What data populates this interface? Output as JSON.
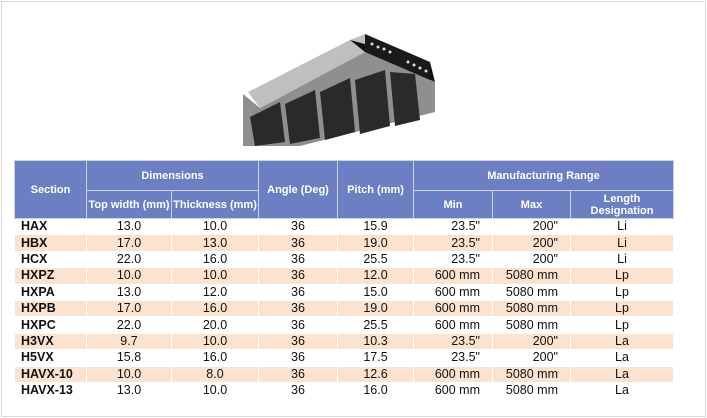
{
  "table": {
    "headers": {
      "section": "Section",
      "dimensions": "Dimensions",
      "top_width": "Top width (mm)",
      "thickness": "Thickness (mm)",
      "angle": "Angle (Deg)",
      "pitch": "Pitch (mm)",
      "manufacturing_range": "Manufacturing Range",
      "min": "Min",
      "max": "Max",
      "length_designation": "Length Designation"
    },
    "rows": [
      [
        "HAX",
        "13.0",
        "10.0",
        "36",
        "15.9",
        "23.5\"",
        "200\"",
        "Li"
      ],
      [
        "HBX",
        "17.0",
        "13.0",
        "36",
        "19.0",
        "23.5\"",
        "200\"",
        "Li"
      ],
      [
        "HCX",
        "22.0",
        "16.0",
        "36",
        "25.5",
        "23.5\"",
        "200\"",
        "Li"
      ],
      [
        "HXPZ",
        "10.0",
        "10.0",
        "36",
        "12.0",
        "600 mm",
        "5080 mm",
        "Lp"
      ],
      [
        "HXPA",
        "13.0",
        "12.0",
        "36",
        "15.0",
        "600 mm",
        "5080 mm",
        "Lp"
      ],
      [
        "HXPB",
        "17.0",
        "16.0",
        "36",
        "19.0",
        "600 mm",
        "5080 mm",
        "Lp"
      ],
      [
        "HXPC",
        "22.0",
        "20.0",
        "36",
        "25.5",
        "600 mm",
        "5080 mm",
        "Lp"
      ],
      [
        "H3VX",
        "9.7",
        "10.0",
        "36",
        "10.3",
        "23.5\"",
        "200\"",
        "La"
      ],
      [
        "H5VX",
        "15.8",
        "16.0",
        "36",
        "17.5",
        "23.5\"",
        "200\"",
        "La"
      ],
      [
        "HAVX-10",
        "10.0",
        "8.0",
        "36",
        "12.6",
        "600 mm",
        "5080 mm",
        "La"
      ],
      [
        "HAVX-13",
        "13.0",
        "10.0",
        "36",
        "16.0",
        "600 mm",
        "5080 mm",
        "La"
      ]
    ]
  }
}
